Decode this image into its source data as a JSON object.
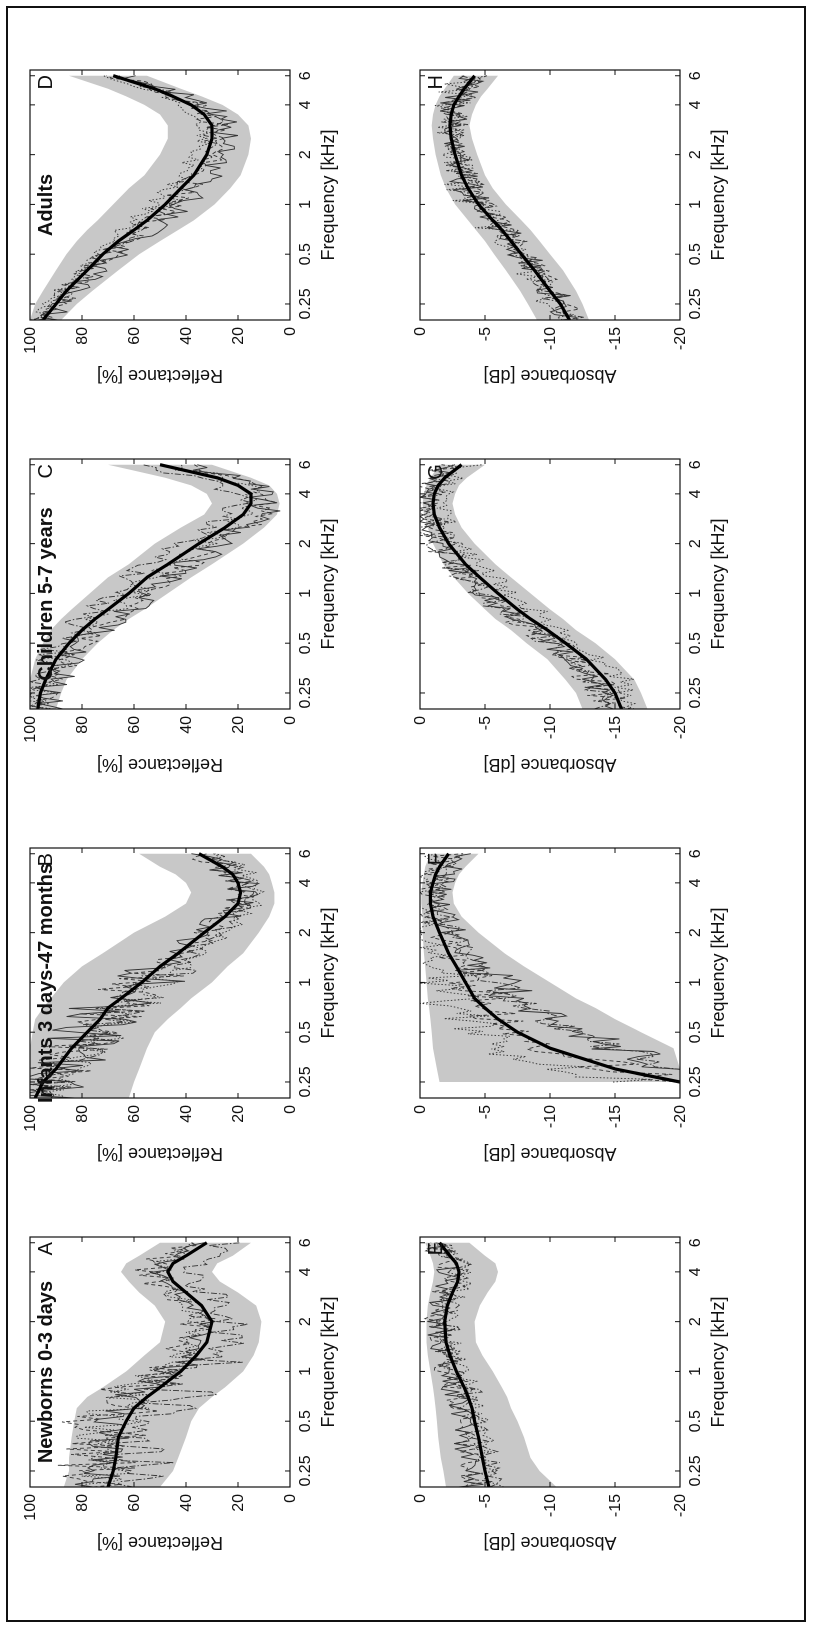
{
  "figure": {
    "orientation": "rotated-90-ccw",
    "background": "#ffffff"
  },
  "colors": {
    "band": "#c8c8c8",
    "mean": "#000000",
    "individual": "#333333",
    "axis": "#111111"
  },
  "legend": "none",
  "chart_data": [
    {
      "type": "line",
      "id": "A",
      "panel_letter": "A",
      "group_title": "Newborns 0-3 days",
      "xlabel": "Frequency [kHz]",
      "ylabel": "Reflectance [%]",
      "xscale": "log",
      "xlim": [
        0.2,
        6.5
      ],
      "ylim": [
        0,
        100
      ],
      "xticks": [
        0.25,
        0.5,
        1,
        2,
        4,
        6
      ],
      "xtick_labels": [
        "0.25",
        "0.5",
        "1",
        "2",
        "4",
        "6"
      ],
      "yticks": [
        0,
        20,
        40,
        60,
        80,
        100
      ],
      "ytick_labels": [
        "0",
        "20",
        "40",
        "60",
        "80",
        "100"
      ],
      "grid": false,
      "x": [
        0.2,
        0.25,
        0.3,
        0.4,
        0.5,
        0.6,
        0.7,
        0.8,
        1,
        1.25,
        1.5,
        2,
        2.5,
        3,
        3.5,
        4,
        4.5,
        5,
        6
      ],
      "mean": [
        70,
        68,
        67,
        66,
        63,
        60,
        55,
        50,
        42,
        36,
        32,
        30,
        34,
        40,
        45,
        47,
        45,
        40,
        32
      ],
      "band_lower": [
        50,
        45,
        43,
        40,
        38,
        35,
        30,
        25,
        18,
        14,
        12,
        11,
        13,
        20,
        27,
        30,
        28,
        22,
        15
      ],
      "band_upper": [
        87,
        85,
        85,
        84,
        83,
        82,
        78,
        72,
        63,
        56,
        50,
        48,
        52,
        58,
        62,
        65,
        63,
        58,
        50
      ]
    },
    {
      "type": "line",
      "id": "B",
      "panel_letter": "B",
      "group_title": "Infants 3 days-47 months",
      "xlabel": "Frequency [kHz]",
      "ylabel": "Reflectance [%]",
      "xscale": "log",
      "xlim": [
        0.2,
        6.5
      ],
      "ylim": [
        0,
        100
      ],
      "xticks": [
        0.25,
        0.5,
        1,
        2,
        4,
        6
      ],
      "xtick_labels": [
        "0.25",
        "0.5",
        "1",
        "2",
        "4",
        "6"
      ],
      "yticks": [
        0,
        20,
        40,
        60,
        80,
        100
      ],
      "ytick_labels": [
        "0",
        "20",
        "40",
        "60",
        "80",
        "100"
      ],
      "grid": false,
      "x": [
        0.2,
        0.25,
        0.3,
        0.4,
        0.5,
        0.6,
        0.7,
        0.8,
        1,
        1.25,
        1.5,
        2,
        2.5,
        3,
        3.5,
        4,
        4.5,
        5,
        6
      ],
      "mean": [
        98,
        95,
        90,
        84,
        78,
        73,
        70,
        65,
        57,
        50,
        43,
        33,
        25,
        20,
        19,
        20,
        22,
        26,
        35
      ],
      "band_lower": [
        62,
        60,
        58,
        55,
        52,
        47,
        42,
        38,
        30,
        24,
        18,
        12,
        8,
        6,
        6,
        7,
        8,
        10,
        15
      ],
      "band_upper": [
        100,
        100,
        100,
        100,
        99,
        98,
        95,
        92,
        87,
        80,
        72,
        60,
        48,
        40,
        38,
        40,
        44,
        50,
        58
      ]
    },
    {
      "type": "line",
      "id": "C",
      "panel_letter": "C",
      "group_title": "Children 5-7 years",
      "xlabel": "Frequency [kHz]",
      "ylabel": "Reflectance [%]",
      "xscale": "log",
      "xlim": [
        0.2,
        6.5
      ],
      "ylim": [
        0,
        100
      ],
      "xticks": [
        0.25,
        0.5,
        1,
        2,
        4,
        6
      ],
      "xtick_labels": [
        "0.25",
        "0.5",
        "1",
        "2",
        "4",
        "6"
      ],
      "yticks": [
        0,
        20,
        40,
        60,
        80,
        100
      ],
      "ytick_labels": [
        "0",
        "20",
        "40",
        "60",
        "80",
        "100"
      ],
      "grid": false,
      "x": [
        0.2,
        0.25,
        0.3,
        0.4,
        0.5,
        0.6,
        0.7,
        0.8,
        1,
        1.25,
        1.5,
        2,
        2.5,
        3,
        3.5,
        4,
        4.5,
        5,
        6
      ],
      "mean": [
        97,
        96,
        94,
        90,
        85,
        80,
        75,
        70,
        62,
        55,
        47,
        35,
        25,
        18,
        15,
        15,
        20,
        28,
        50
      ],
      "band_lower": [
        90,
        88,
        86,
        80,
        74,
        68,
        62,
        56,
        47,
        38,
        30,
        18,
        10,
        5,
        4,
        5,
        8,
        15,
        30
      ],
      "band_upper": [
        100,
        100,
        100,
        98,
        95,
        92,
        88,
        84,
        77,
        70,
        62,
        52,
        42,
        33,
        30,
        32,
        38,
        48,
        70
      ]
    },
    {
      "type": "line",
      "id": "D",
      "panel_letter": "D",
      "group_title": "Adults",
      "xlabel": "Frequency [kHz]",
      "ylabel": "Reflectance [%]",
      "xscale": "log",
      "xlim": [
        0.2,
        6.5
      ],
      "ylim": [
        0,
        100
      ],
      "xticks": [
        0.25,
        0.5,
        1,
        2,
        4,
        6
      ],
      "xtick_labels": [
        "0.25",
        "0.5",
        "1",
        "2",
        "4",
        "6"
      ],
      "yticks": [
        0,
        20,
        40,
        60,
        80,
        100
      ],
      "ytick_labels": [
        "0",
        "20",
        "40",
        "60",
        "80",
        "100"
      ],
      "grid": false,
      "x": [
        0.2,
        0.25,
        0.3,
        0.4,
        0.5,
        0.6,
        0.7,
        0.8,
        1,
        1.25,
        1.5,
        2,
        2.5,
        3,
        3.5,
        4,
        4.5,
        5,
        6
      ],
      "mean": [
        95,
        90,
        86,
        78,
        72,
        66,
        60,
        55,
        48,
        42,
        37,
        32,
        30,
        30,
        33,
        38,
        45,
        52,
        68
      ],
      "band_lower": [
        88,
        82,
        76,
        66,
        58,
        50,
        43,
        37,
        29,
        23,
        19,
        16,
        15,
        16,
        20,
        26,
        34,
        42,
        55
      ],
      "band_upper": [
        100,
        98,
        95,
        90,
        86,
        82,
        78,
        74,
        68,
        62,
        56,
        50,
        47,
        47,
        50,
        56,
        63,
        70,
        85
      ]
    },
    {
      "type": "line",
      "id": "E",
      "panel_letter": "E",
      "group_title": "",
      "xlabel": "Frequency [kHz]",
      "ylabel": "Absorbance [dB]",
      "xscale": "log",
      "xlim": [
        0.2,
        6.5
      ],
      "ylim": [
        -20,
        0
      ],
      "xticks": [
        0.25,
        0.5,
        1,
        2,
        4,
        6
      ],
      "xtick_labels": [
        "0.25",
        "0.5",
        "1",
        "2",
        "4",
        "6"
      ],
      "yticks": [
        -20,
        -15,
        -10,
        -5,
        0
      ],
      "ytick_labels": [
        "-20",
        "-15",
        "-10",
        "-5",
        "0"
      ],
      "grid": false,
      "x": [
        0.2,
        0.25,
        0.3,
        0.4,
        0.5,
        0.6,
        0.7,
        0.8,
        1,
        1.25,
        1.5,
        2,
        2.5,
        3,
        3.5,
        4,
        4.5,
        5,
        6
      ],
      "mean": [
        -5.3,
        -5,
        -4.8,
        -4.5,
        -4.2,
        -4,
        -3.7,
        -3.4,
        -2.8,
        -2.3,
        -2,
        -1.9,
        -2.1,
        -2.5,
        -2.9,
        -3,
        -2.8,
        -2.3,
        -1.5
      ],
      "band_lower": [
        -10.5,
        -9.2,
        -8.5,
        -8,
        -7.5,
        -7,
        -6.7,
        -6.3,
        -5.6,
        -4.8,
        -4.3,
        -4.2,
        -4.6,
        -5.2,
        -5.8,
        -6,
        -5.8,
        -5,
        -3.8
      ],
      "band_upper": [
        -2,
        -1.8,
        -1.6,
        -1.4,
        -1.3,
        -1.2,
        -1.1,
        -1,
        -0.8,
        -0.6,
        -0.5,
        -0.5,
        -0.6,
        -0.8,
        -1,
        -1.1,
        -1,
        -0.8,
        -0.4
      ]
    },
    {
      "type": "line",
      "id": "F",
      "panel_letter": "F",
      "group_title": "",
      "xlabel": "Frequency [kHz]",
      "ylabel": "Absorbance [dB]",
      "xscale": "log",
      "xlim": [
        0.2,
        6.5
      ],
      "ylim": [
        -20,
        0
      ],
      "xticks": [
        0.25,
        0.5,
        1,
        2,
        4,
        6
      ],
      "xtick_labels": [
        "0.25",
        "0.5",
        "1",
        "2",
        "4",
        "6"
      ],
      "yticks": [
        -20,
        -15,
        -10,
        -5,
        0
      ],
      "ytick_labels": [
        "-20",
        "-15",
        "-10",
        "-5",
        "0"
      ],
      "grid": false,
      "x": [
        0.25,
        0.3,
        0.4,
        0.5,
        0.6,
        0.7,
        0.8,
        1,
        1.25,
        1.5,
        2,
        2.5,
        3,
        3.5,
        4,
        4.5,
        5,
        6
      ],
      "mean": [
        -20,
        -15,
        -10,
        -7.5,
        -6,
        -5,
        -4.2,
        -3.5,
        -2.8,
        -2.2,
        -1.5,
        -1,
        -0.8,
        -0.8,
        -1,
        -1.2,
        -1.5,
        -2.2
      ],
      "band_lower": [
        -20,
        -20,
        -19.5,
        -17,
        -15,
        -13.5,
        -12,
        -10,
        -8,
        -6.5,
        -4.5,
        -3.2,
        -2.6,
        -2.5,
        -2.7,
        -3,
        -3.5,
        -4.5
      ],
      "band_upper": [
        -1.5,
        -1.3,
        -1,
        -0.9,
        -0.8,
        -0.7,
        -0.6,
        -0.5,
        -0.4,
        -0.3,
        -0.2,
        -0.2,
        -0.1,
        -0.1,
        -0.2,
        -0.3,
        -0.4,
        -0.8
      ]
    },
    {
      "type": "line",
      "id": "G",
      "panel_letter": "G",
      "group_title": "",
      "xlabel": "Frequency [kHz]",
      "ylabel": "Absorbance [dB]",
      "xscale": "log",
      "xlim": [
        0.2,
        6.5
      ],
      "ylim": [
        -20,
        0
      ],
      "xticks": [
        0.25,
        0.5,
        1,
        2,
        4,
        6
      ],
      "xtick_labels": [
        "0.25",
        "0.5",
        "1",
        "2",
        "4",
        "6"
      ],
      "yticks": [
        -20,
        -15,
        -10,
        -5,
        0
      ],
      "ytick_labels": [
        "-20",
        "-15",
        "-10",
        "-5",
        "0"
      ],
      "grid": false,
      "x": [
        0.2,
        0.25,
        0.3,
        0.4,
        0.5,
        0.6,
        0.7,
        0.8,
        1,
        1.25,
        1.5,
        2,
        2.5,
        3,
        3.5,
        4,
        4.5,
        5,
        6
      ],
      "mean": [
        -15.5,
        -15,
        -14.3,
        -12.8,
        -11.2,
        -9.8,
        -8.5,
        -7.5,
        -6,
        -4.6,
        -3.5,
        -2.2,
        -1.5,
        -1.1,
        -1,
        -1.1,
        -1.4,
        -1.9,
        -3.2
      ],
      "band_lower": [
        -17.5,
        -17,
        -16.5,
        -15,
        -13.5,
        -12,
        -11,
        -10,
        -8.5,
        -7,
        -5.8,
        -4.2,
        -3.2,
        -2.7,
        -2.5,
        -2.7,
        -3,
        -3.6,
        -5
      ],
      "band_upper": [
        -12.5,
        -12,
        -11.2,
        -9.8,
        -8.2,
        -7,
        -5.8,
        -5,
        -3.7,
        -2.6,
        -1.8,
        -1,
        -0.6,
        -0.3,
        -0.2,
        -0.3,
        -0.5,
        -0.8,
        -1.5
      ]
    },
    {
      "type": "line",
      "id": "H",
      "panel_letter": "H",
      "group_title": "",
      "xlabel": "Frequency [kHz]",
      "ylabel": "Absorbance [dB]",
      "xscale": "log",
      "xlim": [
        0.2,
        6.5
      ],
      "ylim": [
        -20,
        0
      ],
      "xticks": [
        0.25,
        0.5,
        1,
        2,
        4,
        6
      ],
      "xtick_labels": [
        "0.25",
        "0.5",
        "1",
        "2",
        "4",
        "6"
      ],
      "yticks": [
        -20,
        -15,
        -10,
        -5,
        0
      ],
      "ytick_labels": [
        "-20",
        "-15",
        "-10",
        "-5",
        "0"
      ],
      "grid": false,
      "x": [
        0.2,
        0.25,
        0.3,
        0.4,
        0.5,
        0.6,
        0.7,
        0.8,
        1,
        1.25,
        1.5,
        2,
        2.5,
        3,
        3.5,
        4,
        4.5,
        5,
        6
      ],
      "mean": [
        -11.5,
        -10.8,
        -10,
        -8.8,
        -7.8,
        -7,
        -6.3,
        -5.6,
        -4.5,
        -3.7,
        -3.2,
        -2.7,
        -2.4,
        -2.3,
        -2.4,
        -2.6,
        -3,
        -3.4,
        -4.2
      ],
      "band_lower": [
        -13,
        -12.5,
        -12,
        -11,
        -10,
        -9.2,
        -8.5,
        -7.8,
        -6.6,
        -5.6,
        -5,
        -4.4,
        -4,
        -3.8,
        -4,
        -4.3,
        -4.7,
        -5.2,
        -6
      ],
      "band_upper": [
        -9,
        -8.3,
        -7.7,
        -6.6,
        -5.7,
        -5,
        -4.3,
        -3.7,
        -2.7,
        -2,
        -1.6,
        -1.2,
        -1,
        -0.9,
        -1,
        -1.2,
        -1.5,
        -1.9,
        -2.6
      ]
    }
  ]
}
